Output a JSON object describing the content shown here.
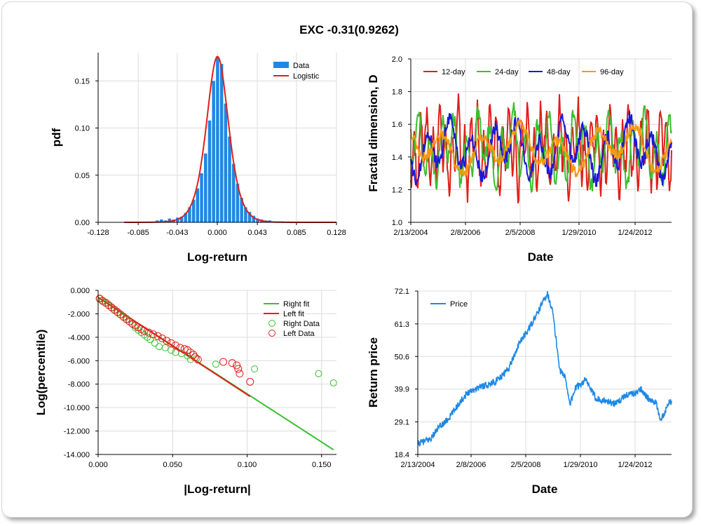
{
  "title": "EXC -0.31(0.9262)",
  "chart_data": [
    {
      "id": "histogram",
      "type": "bar",
      "xlabel": "Log-return",
      "ylabel": "pdf",
      "xlim": [
        -0.128,
        0.128
      ],
      "ylim": [
        0,
        0.18
      ],
      "xticks": [
        "-0.128",
        "-0.085",
        "-0.043",
        "0.000",
        "0.043",
        "0.085",
        "0.128"
      ],
      "yticks": [
        "0.00",
        "0.05",
        "0.10",
        "0.15"
      ],
      "legend": [
        "Data",
        "Logistic"
      ],
      "legend_position": "top-right",
      "colors": {
        "Data": "#1e88e5",
        "Logistic": "#e0201a"
      },
      "bar_width": 0.0043,
      "bars": [
        [
          -0.0645,
          0.002
        ],
        [
          -0.06,
          0.003
        ],
        [
          -0.0557,
          0.002
        ],
        [
          -0.0514,
          0.004
        ],
        [
          -0.047,
          0.003
        ],
        [
          -0.0427,
          0.005
        ],
        [
          -0.0384,
          0.006
        ],
        [
          -0.0341,
          0.01
        ],
        [
          -0.0298,
          0.016
        ],
        [
          -0.0255,
          0.024
        ],
        [
          -0.0212,
          0.036
        ],
        [
          -0.0169,
          0.052
        ],
        [
          -0.0126,
          0.073
        ],
        [
          -0.0083,
          0.108
        ],
        [
          -0.004,
          0.15
        ],
        [
          0.0003,
          0.175
        ],
        [
          0.0046,
          0.168
        ],
        [
          0.0089,
          0.126
        ],
        [
          0.0132,
          0.091
        ],
        [
          0.0175,
          0.062
        ],
        [
          0.0218,
          0.041
        ],
        [
          0.0261,
          0.026
        ],
        [
          0.0304,
          0.016
        ],
        [
          0.0347,
          0.011
        ],
        [
          0.039,
          0.007
        ],
        [
          0.0433,
          0.004
        ],
        [
          0.0476,
          0.003
        ],
        [
          0.052,
          0.002
        ],
        [
          0.0563,
          0.002
        ],
        [
          0.0606,
          0.001
        ],
        [
          0.065,
          0.001
        ],
        [
          0.0693,
          0.001
        ]
      ],
      "logistic_mu": 0.0002,
      "logistic_s": 0.0079
    },
    {
      "id": "fractal",
      "type": "line",
      "xlabel": "Date",
      "ylabel": "Fractal dimension, D",
      "xticks": [
        "2/13/2004",
        "2/8/2006",
        "2/5/2008",
        "1/29/2010",
        "1/24/2012"
      ],
      "ylim": [
        1.0,
        2.0
      ],
      "yticks": [
        "1.0",
        "1.2",
        "1.4",
        "1.6",
        "1.8",
        "2.0"
      ],
      "legend_position": "top",
      "series": [
        {
          "name": "12-day",
          "color": "#e0201a",
          "mean": 1.45,
          "amp": 0.22,
          "period": 9
        },
        {
          "name": "24-day",
          "color": "#3bbf2e",
          "mean": 1.45,
          "amp": 0.18,
          "period": 17
        },
        {
          "name": "48-day",
          "color": "#1a1ad6",
          "mean": 1.45,
          "amp": 0.15,
          "period": 32
        },
        {
          "name": "96-day",
          "color": "#f59a10",
          "mean": 1.45,
          "amp": 0.12,
          "period": 55
        }
      ]
    },
    {
      "id": "tail",
      "type": "scatter",
      "xlabel": "|Log-return|",
      "ylabel": "Log(percentile)",
      "xlim": [
        0,
        0.16
      ],
      "ylim": [
        -14,
        0
      ],
      "xticks": [
        "0.000",
        "0.050",
        "0.100",
        "0.150"
      ],
      "yticks": [
        "0.000",
        "-2.000",
        "-4.000",
        "-6.000",
        "-8.000",
        "-10.000",
        "-12.000",
        "-14.000"
      ],
      "legend": [
        "Right fit",
        "Left fit",
        "Right Data",
        "Left Data"
      ],
      "legend_position": "top-right",
      "right_fit": {
        "color": "#3bbf2e",
        "x": [
          0.0,
          0.158
        ],
        "y": [
          -0.6,
          -13.6
        ]
      },
      "left_fit": {
        "color": "#e0201a",
        "x": [
          0.0,
          0.102
        ],
        "y": [
          -0.6,
          -9.05
        ]
      },
      "right_data": {
        "color": "#3bbf2e",
        "points": [
          [
            0.001,
            -0.7
          ],
          [
            0.003,
            -0.9
          ],
          [
            0.005,
            -1.1
          ],
          [
            0.007,
            -1.3
          ],
          [
            0.009,
            -1.5
          ],
          [
            0.011,
            -1.7
          ],
          [
            0.013,
            -1.9
          ],
          [
            0.015,
            -2.1
          ],
          [
            0.017,
            -2.3
          ],
          [
            0.019,
            -2.5
          ],
          [
            0.021,
            -2.7
          ],
          [
            0.023,
            -2.9
          ],
          [
            0.025,
            -3.2
          ],
          [
            0.027,
            -3.4
          ],
          [
            0.029,
            -3.6
          ],
          [
            0.031,
            -3.8
          ],
          [
            0.033,
            -4.0
          ],
          [
            0.035,
            -4.2
          ],
          [
            0.038,
            -4.5
          ],
          [
            0.041,
            -4.8
          ],
          [
            0.045,
            -4.9
          ],
          [
            0.049,
            -5.1
          ],
          [
            0.052,
            -5.3
          ],
          [
            0.056,
            -5.4
          ],
          [
            0.06,
            -5.6
          ],
          [
            0.062,
            -5.9
          ],
          [
            0.066,
            -5.8
          ],
          [
            0.079,
            -6.3
          ],
          [
            0.105,
            -6.7
          ],
          [
            0.148,
            -7.1
          ],
          [
            0.158,
            -7.9
          ]
        ]
      },
      "left_data": {
        "color": "#e0201a",
        "points": [
          [
            0.001,
            -0.7
          ],
          [
            0.003,
            -0.9
          ],
          [
            0.005,
            -1.05
          ],
          [
            0.007,
            -1.25
          ],
          [
            0.009,
            -1.45
          ],
          [
            0.011,
            -1.65
          ],
          [
            0.013,
            -1.85
          ],
          [
            0.015,
            -2.05
          ],
          [
            0.017,
            -2.25
          ],
          [
            0.019,
            -2.45
          ],
          [
            0.021,
            -2.65
          ],
          [
            0.023,
            -2.85
          ],
          [
            0.025,
            -3.0
          ],
          [
            0.027,
            -3.15
          ],
          [
            0.029,
            -3.3
          ],
          [
            0.031,
            -3.45
          ],
          [
            0.034,
            -3.6
          ],
          [
            0.037,
            -3.75
          ],
          [
            0.04,
            -3.9
          ],
          [
            0.043,
            -4.1
          ],
          [
            0.046,
            -4.3
          ],
          [
            0.049,
            -4.5
          ],
          [
            0.052,
            -4.7
          ],
          [
            0.055,
            -4.9
          ],
          [
            0.058,
            -5.0
          ],
          [
            0.06,
            -5.1
          ],
          [
            0.062,
            -5.3
          ],
          [
            0.064,
            -5.5
          ],
          [
            0.065,
            -5.7
          ],
          [
            0.067,
            -5.9
          ],
          [
            0.084,
            -6.1
          ],
          [
            0.09,
            -6.2
          ],
          [
            0.093,
            -6.4
          ],
          [
            0.094,
            -6.7
          ],
          [
            0.095,
            -7.1
          ],
          [
            0.102,
            -7.8
          ]
        ]
      }
    },
    {
      "id": "price",
      "type": "line",
      "xlabel": "Date",
      "ylabel": "Return price",
      "xticks": [
        "2/13/2004",
        "2/8/2006",
        "2/5/2008",
        "1/29/2010",
        "1/24/2012"
      ],
      "ylim": [
        18.4,
        72.1
      ],
      "yticks": [
        "18.4",
        "29.1",
        "39.9",
        "50.6",
        "61.3",
        "72.1"
      ],
      "legend": [
        "Price"
      ],
      "legend_position": "top-left",
      "color": "#1e88e5",
      "anchors": [
        [
          0.0,
          22.0
        ],
        [
          0.02,
          22.5
        ],
        [
          0.05,
          23.5
        ],
        [
          0.08,
          27.0
        ],
        [
          0.12,
          30.0
        ],
        [
          0.16,
          35.0
        ],
        [
          0.2,
          39.0
        ],
        [
          0.24,
          40.5
        ],
        [
          0.28,
          41.5
        ],
        [
          0.32,
          43.0
        ],
        [
          0.36,
          47.0
        ],
        [
          0.4,
          55.0
        ],
        [
          0.44,
          60.0
        ],
        [
          0.47,
          64.5
        ],
        [
          0.49,
          68.0
        ],
        [
          0.51,
          71.5
        ],
        [
          0.53,
          66.0
        ],
        [
          0.545,
          56.0
        ],
        [
          0.56,
          46.0
        ],
        [
          0.58,
          44.0
        ],
        [
          0.6,
          35.0
        ],
        [
          0.62,
          40.0
        ],
        [
          0.66,
          43.0
        ],
        [
          0.7,
          37.0
        ],
        [
          0.74,
          36.0
        ],
        [
          0.78,
          35.0
        ],
        [
          0.82,
          38.0
        ],
        [
          0.86,
          38.5
        ],
        [
          0.88,
          40.0
        ],
        [
          0.91,
          36.5
        ],
        [
          0.94,
          35.0
        ],
        [
          0.955,
          30.0
        ],
        [
          0.97,
          31.5
        ],
        [
          0.985,
          35.0
        ],
        [
          1.0,
          36.0
        ]
      ]
    }
  ]
}
